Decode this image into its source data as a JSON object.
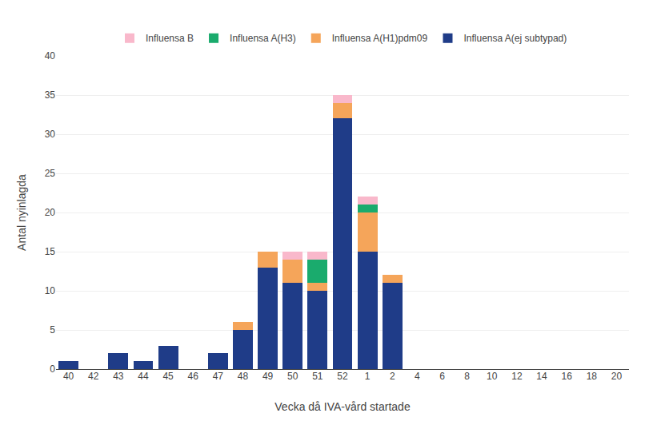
{
  "chart_data": {
    "type": "bar",
    "stacked": true,
    "xlabel": "Vecka då IVA-vård startade",
    "ylabel": "Antal nyinlagda",
    "categories": [
      "40",
      "42",
      "43",
      "44",
      "45",
      "46",
      "47",
      "48",
      "49",
      "50",
      "51",
      "52",
      "1",
      "2",
      "4",
      "6",
      "8",
      "10",
      "12",
      "14",
      "16",
      "18",
      "20"
    ],
    "series": [
      {
        "name": "Influensa A(ej subtypad)",
        "color": "#1f3c88",
        "values": [
          1,
          0,
          2,
          1,
          3,
          0,
          2,
          5,
          13,
          11,
          10,
          32,
          15,
          11,
          0,
          0,
          0,
          0,
          0,
          0,
          0,
          0,
          0
        ]
      },
      {
        "name": "Influensa A(H1)pdm09",
        "color": "#f5a55a",
        "values": [
          0,
          0,
          0,
          0,
          0,
          0,
          0,
          1,
          2,
          3,
          1,
          2,
          5,
          1,
          0,
          0,
          0,
          0,
          0,
          0,
          0,
          0,
          0
        ]
      },
      {
        "name": "Influensa A(H3)",
        "color": "#1aab6d",
        "values": [
          0,
          0,
          0,
          0,
          0,
          0,
          0,
          0,
          0,
          0,
          3,
          0,
          1,
          0,
          0,
          0,
          0,
          0,
          0,
          0,
          0,
          0,
          0
        ]
      },
      {
        "name": "Influensa B",
        "color": "#f9b8cb",
        "values": [
          0,
          0,
          0,
          0,
          0,
          0,
          0,
          0,
          0,
          1,
          1,
          1,
          1,
          0,
          0,
          0,
          0,
          0,
          0,
          0,
          0,
          0,
          0
        ]
      }
    ],
    "ylim": [
      0,
      40
    ],
    "yticks": [
      0,
      5,
      10,
      15,
      20,
      25,
      30,
      35,
      40
    ],
    "grid": true,
    "legend": "upper center"
  }
}
